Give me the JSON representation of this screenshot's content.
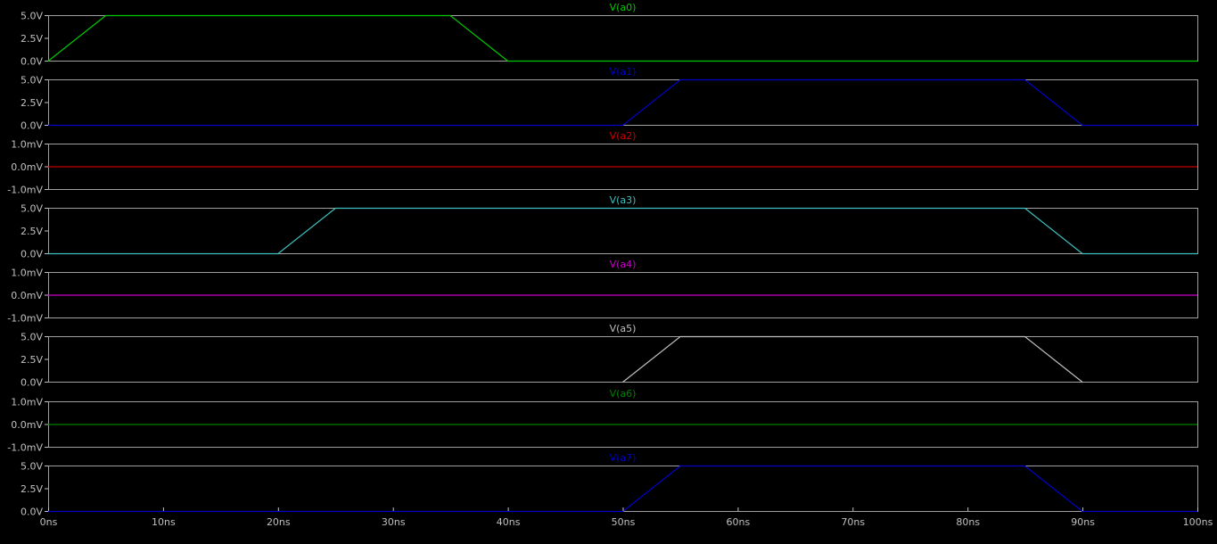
{
  "chart_data": {
    "type": "line",
    "background": "#000000",
    "frame_color": "#a0a0a0",
    "tick_color": "#c0c0c0",
    "x_axis": {
      "range": [
        0,
        100
      ],
      "unit": "ns",
      "ticks": [
        0,
        10,
        20,
        30,
        40,
        50,
        60,
        70,
        80,
        90,
        100
      ],
      "tick_labels": [
        "0ns",
        "10ns",
        "20ns",
        "30ns",
        "40ns",
        "50ns",
        "60ns",
        "70ns",
        "80ns",
        "90ns",
        "100ns"
      ]
    },
    "panels": [
      {
        "name": "V(a0)",
        "color": "#00c800",
        "ylim": [
          0,
          5
        ],
        "yticks": [
          5,
          2.5,
          0
        ],
        "ytick_labels": [
          "5.0V",
          "2.5V",
          "0.0V"
        ],
        "x": [
          0,
          5,
          35,
          40,
          100
        ],
        "y": [
          0,
          5,
          5,
          0,
          0
        ]
      },
      {
        "name": "V(a1)",
        "color": "#0000c8",
        "ylim": [
          0,
          5
        ],
        "yticks": [
          5,
          2.5,
          0
        ],
        "ytick_labels": [
          "5.0V",
          "2.5V",
          "0.0V"
        ],
        "x": [
          0,
          50,
          55,
          85,
          90,
          100
        ],
        "y": [
          0,
          0,
          5,
          5,
          0,
          0
        ]
      },
      {
        "name": "V(a2)",
        "color": "#c80000",
        "ylim": [
          -1,
          1
        ],
        "yticks": [
          1,
          0,
          -1
        ],
        "ytick_labels": [
          "1.0mV",
          "0.0mV",
          "-1.0mV"
        ],
        "x": [
          0,
          100
        ],
        "y": [
          0,
          0
        ]
      },
      {
        "name": "V(a3)",
        "color": "#3fbfbf",
        "ylim": [
          0,
          5
        ],
        "yticks": [
          5,
          2.5,
          0
        ],
        "ytick_labels": [
          "5.0V",
          "2.5V",
          "0.0V"
        ],
        "x": [
          0,
          20,
          25,
          85,
          90,
          100
        ],
        "y": [
          0,
          0,
          5,
          5,
          0,
          0
        ]
      },
      {
        "name": "V(a4)",
        "color": "#c800c8",
        "ylim": [
          -1,
          1
        ],
        "yticks": [
          1,
          0,
          -1
        ],
        "ytick_labels": [
          "1.0mV",
          "0.0mV",
          "-1.0mV"
        ],
        "x": [
          0,
          100
        ],
        "y": [
          0,
          0
        ]
      },
      {
        "name": "V(a5)",
        "color": "#bfbfbf",
        "ylim": [
          0,
          5
        ],
        "yticks": [
          5,
          2.5,
          0
        ],
        "ytick_labels": [
          "5.0V",
          "2.5V",
          "0.0V"
        ],
        "x": [
          50,
          55,
          85,
          90
        ],
        "y": [
          0,
          5,
          5,
          0
        ]
      },
      {
        "name": "V(a6)",
        "color": "#008000",
        "ylim": [
          -1,
          1
        ],
        "yticks": [
          1,
          0,
          -1
        ],
        "ytick_labels": [
          "1.0mV",
          "0.0mV",
          "-1.0mV"
        ],
        "x": [
          0,
          100
        ],
        "y": [
          0,
          0
        ]
      },
      {
        "name": "V(a7)",
        "color": "#0000c8",
        "ylim": [
          0,
          5
        ],
        "yticks": [
          5,
          2.5,
          0
        ],
        "ytick_labels": [
          "5.0V",
          "2.5V",
          "0.0V"
        ],
        "x": [
          0,
          50,
          55,
          85,
          90,
          100
        ],
        "y": [
          0,
          0,
          5,
          5,
          0,
          0
        ]
      }
    ]
  }
}
